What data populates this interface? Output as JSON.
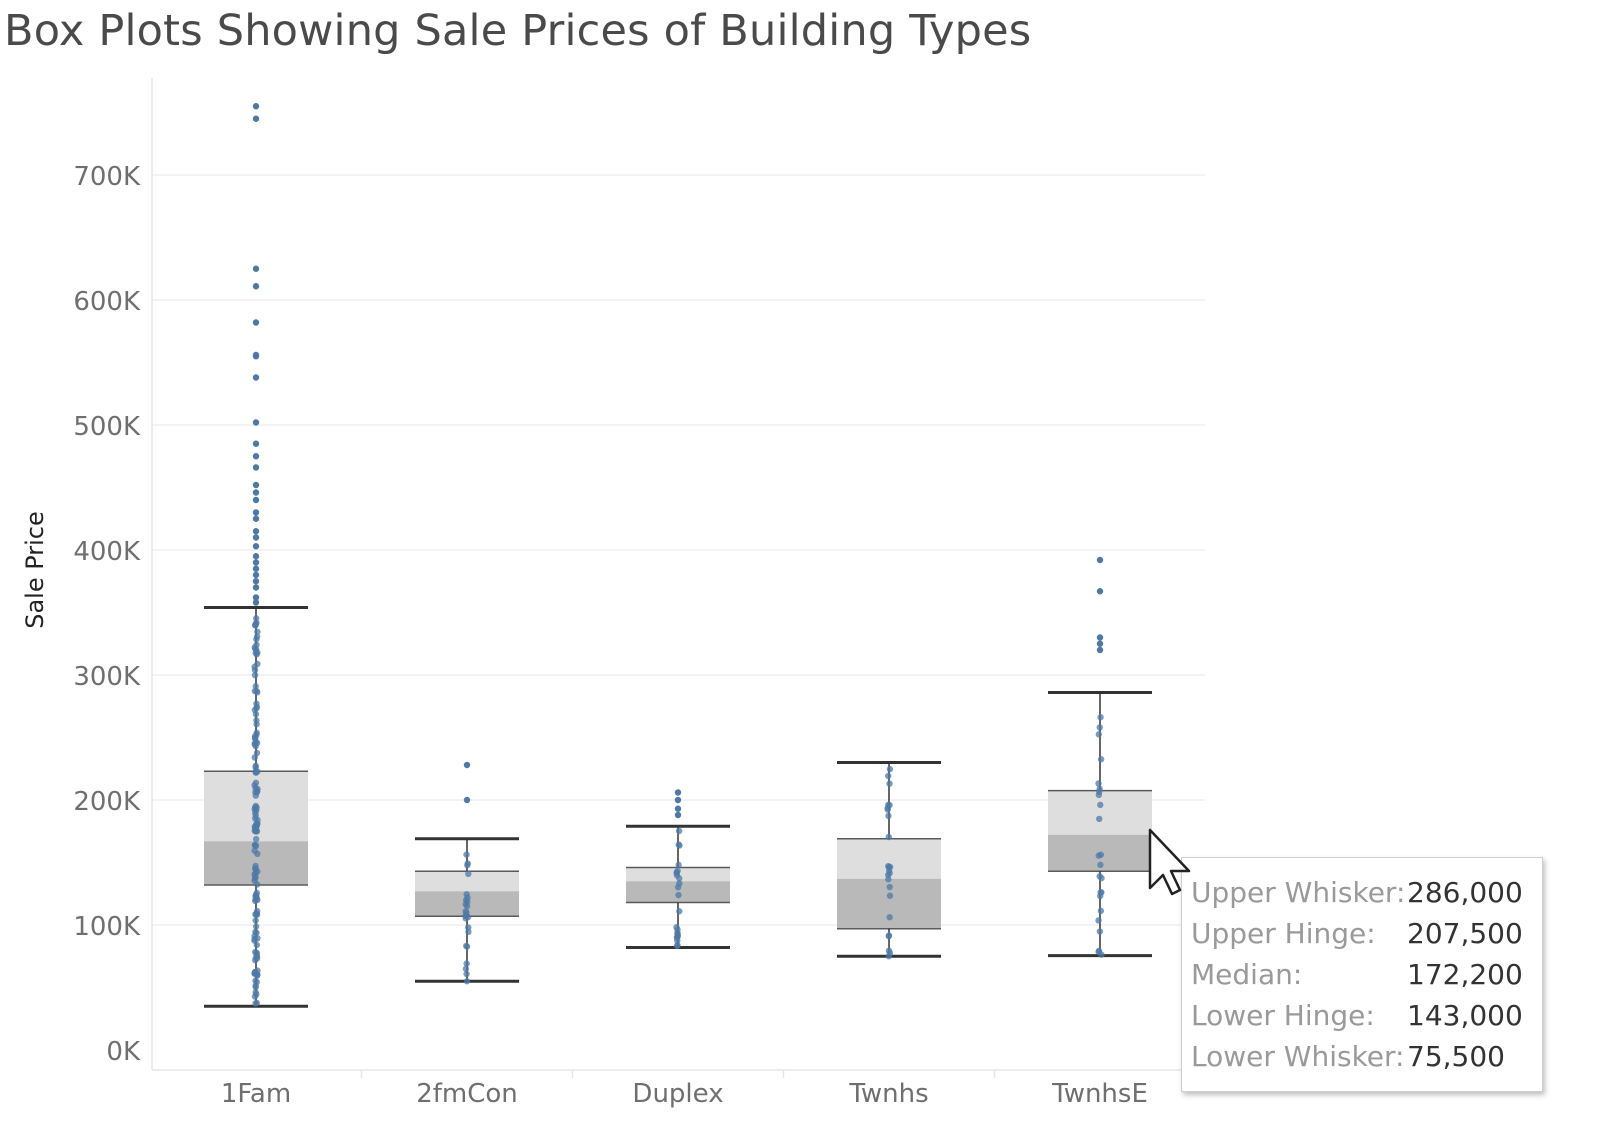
{
  "title": "Box Plots Showing Sale Prices of Building Types",
  "chart_data": {
    "type": "box",
    "title": "Box Plots Showing Sale Prices of Building Types",
    "ylabel": "Sale Price",
    "xlabel": "",
    "ylim": [
      -10000,
      770000
    ],
    "yticks": [
      0,
      100000,
      200000,
      300000,
      400000,
      500000,
      600000,
      700000
    ],
    "ytick_labels": [
      "0K",
      "100K",
      "200K",
      "300K",
      "400K",
      "500K",
      "600K",
      "700K"
    ],
    "grid": true,
    "categories": [
      "1Fam",
      "2fmCon",
      "Duplex",
      "Twnhs",
      "TwnhsE"
    ],
    "boxes": [
      {
        "category": "1Fam",
        "lower_whisker": 35000,
        "lower_hinge": 132000,
        "median": 167000,
        "upper_hinge": 223000,
        "upper_whisker": 354000,
        "outliers": [
          755000,
          745000,
          625000,
          611000,
          582000,
          556000,
          555000,
          538000,
          502000,
          485000,
          475000,
          466000,
          452000,
          446000,
          440000,
          430000,
          425000,
          415000,
          410000,
          403000,
          395000,
          390000,
          385000,
          380000,
          375000,
          370000,
          362000,
          358000
        ]
      },
      {
        "category": "2fmCon",
        "lower_whisker": 55000,
        "lower_hinge": 107000,
        "median": 127000,
        "upper_hinge": 143000,
        "upper_whisker": 169000,
        "outliers": [
          228000,
          200000
        ]
      },
      {
        "category": "Duplex",
        "lower_whisker": 82000,
        "lower_hinge": 118000,
        "median": 135000,
        "upper_hinge": 146000,
        "upper_whisker": 179000,
        "outliers": [
          206000,
          200000,
          193000,
          188000
        ]
      },
      {
        "category": "Twnhs",
        "lower_whisker": 75000,
        "lower_hinge": 97000,
        "median": 137000,
        "upper_hinge": 169000,
        "upper_whisker": 230000,
        "outliers": []
      },
      {
        "category": "TwnhsE",
        "lower_whisker": 75500,
        "lower_hinge": 143000,
        "median": 172200,
        "upper_hinge": 207500,
        "upper_whisker": 286000,
        "outliers": [
          392000,
          367000,
          330000,
          325000,
          320000
        ]
      }
    ],
    "point_color": "#4e79a7",
    "upper_box_color": "#dedede",
    "lower_box_color": "#b9b9b9",
    "whisker_color": "#333333"
  },
  "tooltip": {
    "rows": [
      {
        "label": "Upper Whisker:",
        "value": "286,000"
      },
      {
        "label": "Upper Hinge:",
        "value": "207,500"
      },
      {
        "label": "Median:",
        "value": "172,200"
      },
      {
        "label": "Lower Hinge:",
        "value": "143,000"
      },
      {
        "label": "Lower Whisker:",
        "value": "75,500"
      }
    ]
  }
}
